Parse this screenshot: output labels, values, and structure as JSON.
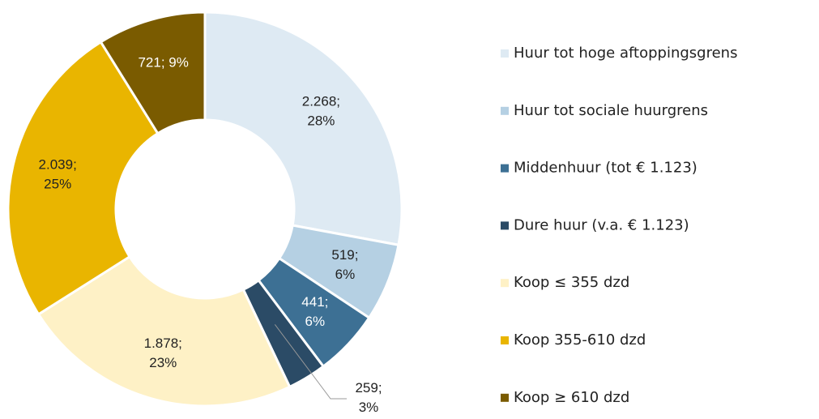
{
  "chart_data": {
    "type": "donut",
    "categories": [
      "Huur tot hoge aftoppingsgrens",
      "Huur tot sociale huurgrens",
      "Middenhuur (tot € 1.123)",
      "Dure huur (v.a. € 1.123)",
      "Koop ≤ 355 dzd",
      "Koop 355-610 dzd",
      "Koop ≥ 610 dzd"
    ],
    "values": [
      2268,
      519,
      441,
      259,
      1878,
      2039,
      721
    ],
    "value_labels": [
      [
        "2.268;",
        "28%"
      ],
      [
        "519;",
        "6%"
      ],
      [
        "441;",
        "6%"
      ],
      [
        "259;",
        "3%"
      ],
      [
        "1.878;",
        "23%"
      ],
      [
        "2.039;",
        "25%"
      ],
      [
        "721; 9%"
      ]
    ],
    "colors": [
      "#deeaf3",
      "#b5d0e3",
      "#3d7094",
      "#2b4b66",
      "#fef1c6",
      "#e9b500",
      "#7a5b00"
    ],
    "legend": "right"
  }
}
